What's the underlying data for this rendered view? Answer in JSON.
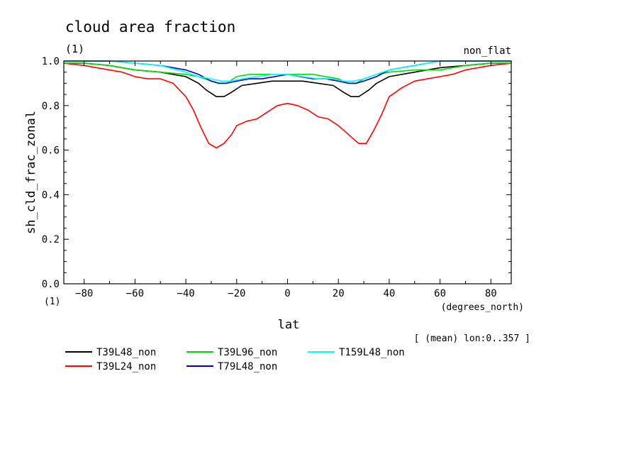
{
  "chart_data": {
    "type": "line",
    "title": "cloud area fraction",
    "title_units": "(1)",
    "subtitle_right": "non_flat",
    "xlabel": "lat",
    "xunits": "(degrees_north)",
    "ylabel": "sh_cld_frac_zonal",
    "yunits": "(1)",
    "xlim": [
      -88,
      88
    ],
    "ylim": [
      0.0,
      1.0
    ],
    "xticks": [
      -80,
      -60,
      -40,
      -20,
      0,
      20,
      40,
      60,
      80
    ],
    "xtick_labels": [
      "−80",
      "−60",
      "−40",
      "−20",
      "0",
      "20",
      "40",
      "60",
      "80"
    ],
    "yticks": [
      0.0,
      0.2,
      0.4,
      0.6,
      0.8,
      1.0
    ],
    "ytick_labels": [
      "0.0",
      "0.2",
      "0.4",
      "0.6",
      "0.8",
      "1.0"
    ],
    "annotation": "[ (mean) lon:0..357 ]",
    "grid": false,
    "legend_position": "bottom",
    "series": [
      {
        "name": "T39L48_non",
        "color": "#000000",
        "x": [
          -88,
          -80,
          -70,
          -60,
          -50,
          -40,
          -35,
          -32,
          -28,
          -25,
          -22,
          -18,
          -12,
          -6,
          0,
          6,
          12,
          18,
          22,
          25,
          28,
          32,
          35,
          40,
          50,
          60,
          70,
          80,
          88
        ],
        "y": [
          0.99,
          0.99,
          0.98,
          0.96,
          0.95,
          0.93,
          0.9,
          0.87,
          0.84,
          0.84,
          0.86,
          0.89,
          0.9,
          0.91,
          0.91,
          0.91,
          0.9,
          0.89,
          0.86,
          0.84,
          0.84,
          0.87,
          0.9,
          0.93,
          0.95,
          0.97,
          0.98,
          0.99,
          0.99
        ]
      },
      {
        "name": "T39L24_non",
        "color": "#ff0000",
        "x": [
          -88,
          -80,
          -70,
          -65,
          -60,
          -55,
          -50,
          -45,
          -40,
          -37,
          -34,
          -31,
          -28,
          -25,
          -22,
          -20,
          -16,
          -12,
          -8,
          -4,
          0,
          4,
          8,
          12,
          16,
          20,
          22,
          25,
          28,
          31,
          34,
          37,
          40,
          45,
          50,
          55,
          60,
          65,
          70,
          80,
          88
        ],
        "y": [
          0.99,
          0.98,
          0.96,
          0.95,
          0.93,
          0.92,
          0.92,
          0.9,
          0.84,
          0.78,
          0.7,
          0.63,
          0.61,
          0.63,
          0.67,
          0.71,
          0.73,
          0.74,
          0.77,
          0.8,
          0.81,
          0.8,
          0.78,
          0.75,
          0.74,
          0.71,
          0.69,
          0.66,
          0.63,
          0.63,
          0.69,
          0.76,
          0.84,
          0.88,
          0.91,
          0.92,
          0.93,
          0.94,
          0.96,
          0.98,
          0.99
        ]
      },
      {
        "name": "T39L96_non",
        "color": "#00dd00",
        "x": [
          -88,
          -80,
          -70,
          -60,
          -50,
          -40,
          -35,
          -30,
          -27,
          -24,
          -20,
          -15,
          -10,
          -5,
          0,
          5,
          10,
          15,
          20,
          24,
          27,
          30,
          35,
          40,
          50,
          60,
          70,
          80,
          88
        ],
        "y": [
          0.99,
          0.99,
          0.98,
          0.96,
          0.95,
          0.94,
          0.93,
          0.91,
          0.9,
          0.9,
          0.93,
          0.94,
          0.94,
          0.94,
          0.94,
          0.94,
          0.94,
          0.93,
          0.92,
          0.9,
          0.9,
          0.92,
          0.94,
          0.95,
          0.96,
          0.96,
          0.98,
          0.99,
          0.99
        ]
      },
      {
        "name": "T79L48_non",
        "color": "#0000cc",
        "x": [
          -88,
          -80,
          -70,
          -60,
          -50,
          -40,
          -35,
          -30,
          -27,
          -24,
          -20,
          -15,
          -10,
          -5,
          0,
          5,
          10,
          15,
          20,
          24,
          27,
          30,
          35,
          40,
          50,
          60,
          70,
          80,
          88
        ],
        "y": [
          1.0,
          1.0,
          1.0,
          0.99,
          0.98,
          0.96,
          0.94,
          0.91,
          0.9,
          0.9,
          0.91,
          0.92,
          0.92,
          0.93,
          0.94,
          0.93,
          0.92,
          0.92,
          0.91,
          0.9,
          0.9,
          0.91,
          0.93,
          0.96,
          0.98,
          1.0,
          1.0,
          1.0,
          1.0
        ]
      },
      {
        "name": "T159L48_non",
        "color": "#00ffff",
        "x": [
          -88,
          -80,
          -70,
          -60,
          -50,
          -40,
          -35,
          -30,
          -26,
          -22,
          -18,
          -12,
          -6,
          0,
          6,
          12,
          18,
          22,
          26,
          30,
          35,
          40,
          50,
          60,
          70,
          80,
          88
        ],
        "y": [
          1.0,
          1.0,
          1.0,
          0.99,
          0.98,
          0.95,
          0.93,
          0.92,
          0.91,
          0.91,
          0.92,
          0.93,
          0.94,
          0.94,
          0.93,
          0.92,
          0.92,
          0.91,
          0.91,
          0.92,
          0.94,
          0.96,
          0.98,
          1.0,
          1.0,
          1.0,
          1.0
        ]
      }
    ]
  }
}
